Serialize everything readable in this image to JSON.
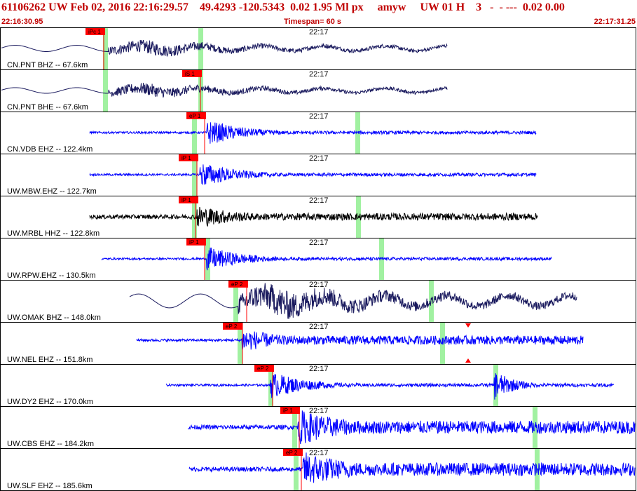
{
  "header": {
    "title": "61106262 UW Feb 02, 2016 22:16:29.57    49.4293 -120.5343  0.02 1.95 Ml px     amyw     UW 01 H    3   -  - ---  0.02 0.00",
    "start_time": "22:16:30.95",
    "timespan": "Timespan=  60 s",
    "end_time": "22:17:31.25"
  },
  "colors": {
    "header_text": "#c00000",
    "trace_blue": "#0000ff",
    "trace_navy": "#1a1a5e",
    "trace_black": "#000000",
    "pick_flag": "#ff0000",
    "window_band": "#90ee90",
    "panel_border": "#000000"
  },
  "minute_label": "22:17",
  "channels": [
    {
      "label": "CN.PNT BHZ -- 67.6km",
      "pick": "iPc 1",
      "color": "navy",
      "waveform": "long-period"
    },
    {
      "label": "CN.PNT BHE -- 67.6km",
      "pick": "iS 1",
      "color": "navy",
      "waveform": "long-period"
    },
    {
      "label": "CN.VDB EHZ -- 122.4km",
      "pick": "eP 1",
      "color": "blue",
      "waveform": "burst"
    },
    {
      "label": "UW.MBW.EHZ -- 122.7km",
      "pick": "iP 1",
      "color": "blue",
      "waveform": "burst"
    },
    {
      "label": "UW.MRBL HHZ -- 122.8km",
      "pick": "iP 1",
      "color": "black",
      "waveform": "noisy"
    },
    {
      "label": "UW.RPW.EHZ -- 130.5km",
      "pick": "iP 1",
      "color": "blue",
      "waveform": "burst"
    },
    {
      "label": "UW.OMAK BHZ -- 148.0km",
      "pick": "eP 2",
      "color": "navy",
      "waveform": "long-period"
    },
    {
      "label": "UW.NEL EHZ -- 151.8km",
      "pick": "eP 2",
      "color": "blue",
      "waveform": "noisy-burst"
    },
    {
      "label": "UW.DY2 EHZ -- 170.0km",
      "pick": "eP 2",
      "color": "blue",
      "waveform": "double-burst"
    },
    {
      "label": "UW.CBS EHZ -- 184.2km",
      "pick": "iP 1",
      "color": "blue",
      "waveform": "big-burst"
    },
    {
      "label": "UW.SLF EHZ -- 185.6km",
      "pick": "eP 2",
      "color": "blue",
      "waveform": "big-burst"
    }
  ]
}
